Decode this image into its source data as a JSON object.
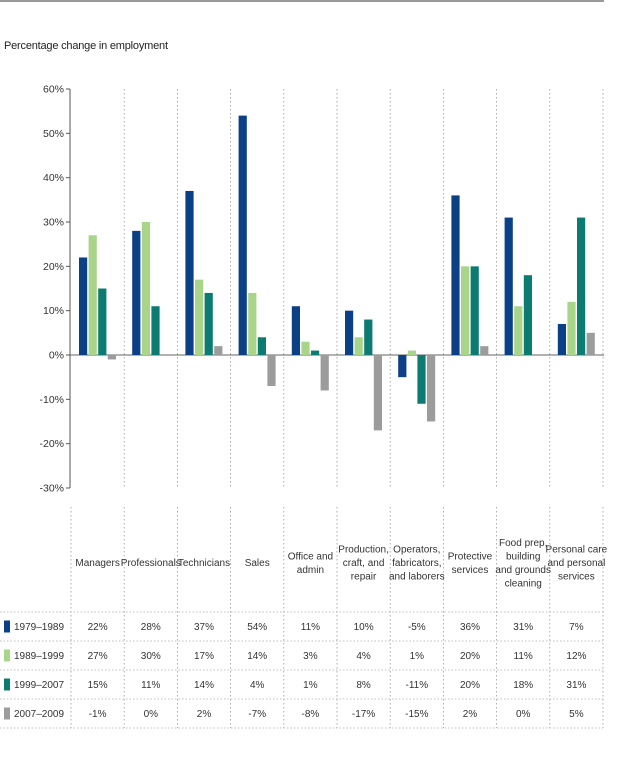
{
  "chart_data": {
    "type": "bar",
    "title": "Percentage change in employment",
    "ylim": [
      -30,
      60
    ],
    "yticks": [
      "60%",
      "50%",
      "40%",
      "30%",
      "20%",
      "10%",
      "0%",
      "-10%",
      "-20%",
      "-30%"
    ],
    "categories": [
      [
        "Managers"
      ],
      [
        "Professionals"
      ],
      [
        "Technicians"
      ],
      [
        "Sales"
      ],
      [
        "Office and",
        "admin"
      ],
      [
        "Production,",
        "craft, and",
        "repair"
      ],
      [
        "Operators,",
        "fabricators,",
        "and laborers"
      ],
      [
        "Protective",
        "services"
      ],
      [
        "Food prep,",
        "building",
        "and grounds",
        "cleaning"
      ],
      [
        "Personal care",
        "and personal",
        "services"
      ]
    ],
    "series": [
      {
        "name": "1979–1989",
        "color": "#0b3f86",
        "values": [
          22,
          28,
          37,
          54,
          11,
          10,
          -5,
          36,
          31,
          7
        ],
        "labels": [
          "22%",
          "28%",
          "37%",
          "54%",
          "11%",
          "10%",
          "-5%",
          "36%",
          "31%",
          "7%"
        ]
      },
      {
        "name": "1989–1999",
        "color": "#a9d58a",
        "values": [
          27,
          30,
          17,
          14,
          3,
          4,
          1,
          20,
          11,
          12
        ],
        "labels": [
          "27%",
          "30%",
          "17%",
          "14%",
          "3%",
          "4%",
          "1%",
          "20%",
          "11%",
          "12%"
        ]
      },
      {
        "name": "1999–2007",
        "color": "#0c7c73",
        "values": [
          15,
          11,
          14,
          4,
          1,
          8,
          -11,
          20,
          18,
          31
        ],
        "labels": [
          "15%",
          "11%",
          "14%",
          "4%",
          "1%",
          "8%",
          "-11%",
          "20%",
          "18%",
          "31%"
        ]
      },
      {
        "name": "2007–2009",
        "color": "#9c9c9c",
        "values": [
          -1,
          0,
          2,
          -7,
          -8,
          -17,
          -15,
          2,
          0,
          5
        ],
        "labels": [
          "-1%",
          "0%",
          "2%",
          "-7%",
          "-8%",
          "-17%",
          "-15%",
          "2%",
          "0%",
          "5%"
        ]
      }
    ]
  }
}
